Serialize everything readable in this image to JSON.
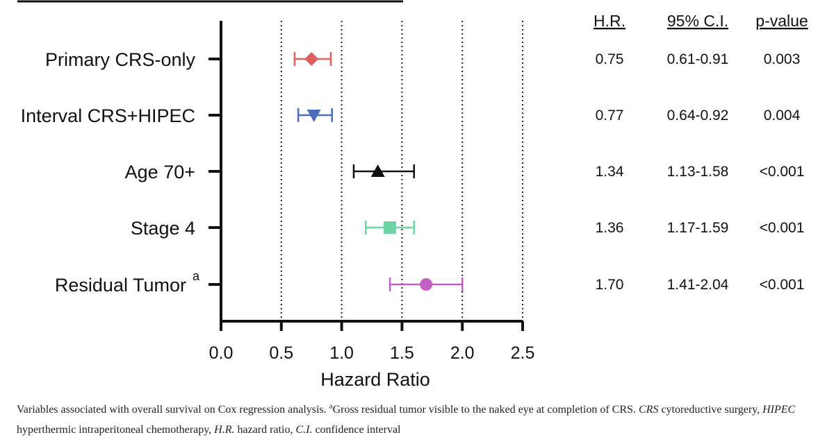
{
  "chart_data": {
    "type": "forest",
    "xlabel": "Hazard Ratio",
    "xlim": [
      0,
      2.5
    ],
    "xticks": [
      "0.0",
      "0.5",
      "1.0",
      "1.5",
      "2.0",
      "2.5"
    ],
    "reference_lines": [
      0.5,
      1.0,
      1.5,
      2.0,
      2.5
    ],
    "columns": [
      "H.R.",
      "95% C.I.",
      "p-value"
    ],
    "rows": [
      {
        "label": "Primary CRS-only",
        "sup": "",
        "hr": 0.75,
        "lo": 0.61,
        "hi": 0.91,
        "hr_text": "0.75",
        "ci_text": "0.61-0.91",
        "p_text": "0.003",
        "marker": "diamond",
        "color": "#e0605e"
      },
      {
        "label": "Interval CRS+HIPEC",
        "sup": "",
        "hr": 0.77,
        "lo": 0.64,
        "hi": 0.92,
        "hr_text": "0.77",
        "ci_text": "0.64-0.92",
        "p_text": "0.004",
        "marker": "triangle-down",
        "color": "#4b6bbd"
      },
      {
        "label": "Age 70+",
        "sup": "",
        "hr": 1.3,
        "lo": 1.1,
        "hi": 1.6,
        "hr_text": "1.34",
        "ci_text": "1.13-1.58",
        "p_text": "<0.001",
        "marker": "triangle-up",
        "color": "#111111"
      },
      {
        "label": "Stage 4",
        "sup": "",
        "hr": 1.4,
        "lo": 1.2,
        "hi": 1.6,
        "hr_text": "1.36",
        "ci_text": "1.17-1.59",
        "p_text": "<0.001",
        "marker": "square",
        "color": "#6dd4a6"
      },
      {
        "label": "Residual Tumor",
        "sup": "a",
        "hr": 1.7,
        "lo": 1.4,
        "hi": 2.0,
        "hr_text": "1.70",
        "ci_text": "1.41-2.04",
        "p_text": "<0.001",
        "marker": "circle",
        "color": "#c25fc4"
      }
    ]
  },
  "caption": {
    "part1": "Variables associated with overall survival on Cox regression analysis. ",
    "sup": "a",
    "part2": "Gross residual tumor visible to the naked eye at completion of CRS. ",
    "crs_abbr": "CRS",
    "crs_def": " cytoreductive surgery, ",
    "hipec_abbr": "HIPEC",
    "hipec_def": " hyperthermic intraperitoneal chemotherapy, ",
    "hr_abbr": "H.R.",
    "hr_def": " hazard ratio, ",
    "ci_abbr": "C.I.",
    "ci_def": " confidence interval"
  }
}
